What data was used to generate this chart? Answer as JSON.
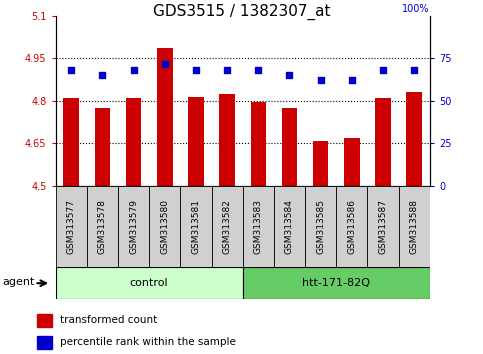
{
  "title": "GDS3515 / 1382307_at",
  "samples": [
    "GSM313577",
    "GSM313578",
    "GSM313579",
    "GSM313580",
    "GSM313581",
    "GSM313582",
    "GSM313583",
    "GSM313584",
    "GSM313585",
    "GSM313586",
    "GSM313587",
    "GSM313588"
  ],
  "bar_values": [
    4.81,
    4.775,
    4.81,
    4.985,
    4.815,
    4.825,
    4.795,
    4.775,
    4.66,
    4.67,
    4.81,
    4.83
  ],
  "percentile_values": [
    68,
    65,
    68,
    72,
    68,
    68,
    68,
    65,
    62,
    62,
    68,
    68
  ],
  "ylim_left": [
    4.5,
    5.1
  ],
  "ylim_right": [
    0,
    100
  ],
  "bar_color": "#cc0000",
  "dot_color": "#0000cc",
  "bar_bottom": 4.5,
  "groups": [
    {
      "label": "control",
      "start": 0,
      "end": 6,
      "color": "#ccffcc"
    },
    {
      "label": "htt-171-82Q",
      "start": 6,
      "end": 12,
      "color": "#66cc66"
    }
  ],
  "agent_label": "agent",
  "legend_items": [
    {
      "color": "#cc0000",
      "label": "transformed count"
    },
    {
      "color": "#0000cc",
      "label": "percentile rank within the sample"
    }
  ],
  "title_fontsize": 11,
  "grid_color": "black",
  "right_axis_color": "#0000cc",
  "left_axis_color": "#cc0000",
  "tick_label_fontsize": 7,
  "sample_label_fontsize": 6.5,
  "group_fontsize": 8,
  "legend_fontsize": 7.5,
  "yticks_left": [
    4.5,
    4.65,
    4.8,
    4.95,
    5.1
  ],
  "ytick_labels_left": [
    "4.5",
    "4.65",
    "4.8",
    "4.95",
    "5.1"
  ],
  "yticks_right": [
    0,
    25,
    50,
    75
  ],
  "ytick_labels_right": [
    "0",
    "25",
    "50",
    "75"
  ],
  "right_top_label": "100%"
}
